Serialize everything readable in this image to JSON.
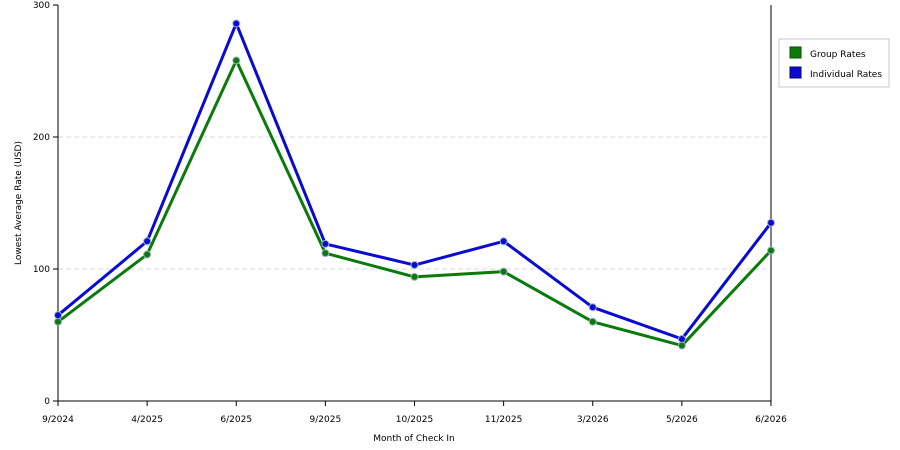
{
  "chart_data": {
    "type": "line",
    "title": "",
    "xlabel": "Month of Check In",
    "ylabel": "Lowest Average Rate (USD)",
    "categories": [
      "9/2024",
      "4/2025",
      "6/2025",
      "9/2025",
      "10/2025",
      "11/2025",
      "3/2026",
      "5/2026",
      "6/2026"
    ],
    "ylim": [
      0,
      300
    ],
    "yticks": [
      0,
      100,
      200,
      300
    ],
    "grid": true,
    "legend_position": "right",
    "series": [
      {
        "name": "Group Rates",
        "color": "#0b7a0b",
        "values": [
          60,
          111,
          258,
          112,
          94,
          98,
          60,
          42,
          114
        ]
      },
      {
        "name": "Individual Rates",
        "color": "#0a0ad0",
        "values": [
          65,
          121,
          286,
          119,
          103,
          121,
          71,
          47,
          135
        ]
      }
    ]
  }
}
